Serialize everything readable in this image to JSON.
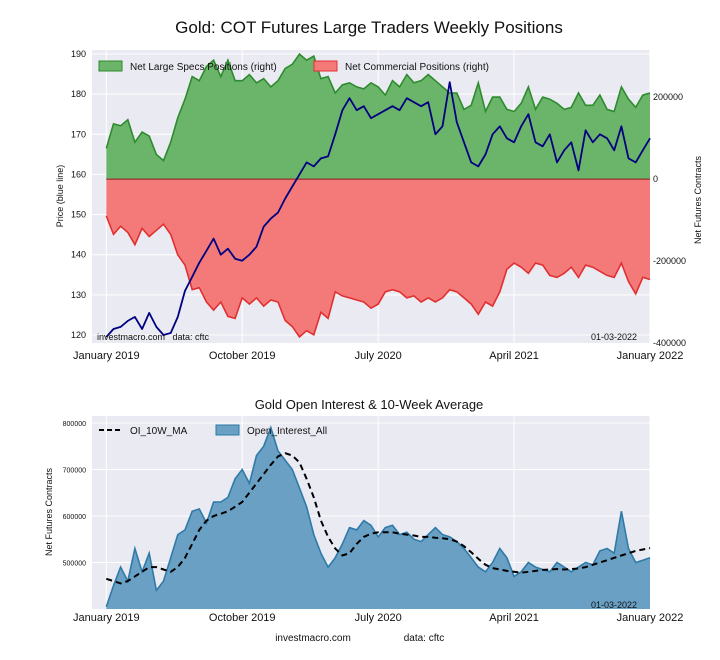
{
  "figure": {
    "title": "Gold: COT Futures Large Traders Weekly Positions"
  },
  "footer": {
    "site": "investmacro.com",
    "source": "data: cftc"
  },
  "colors": {
    "price": "#000080",
    "specs_fill": "#6bb56b",
    "specs_line": "#2e8b2e",
    "comm_fill": "#f47a7a",
    "comm_line": "#e03030",
    "oi_fill": "#6aa0c4",
    "oi_line": "#2f7aa8",
    "ma": "#000000",
    "plot_bg": "#eaeaf2"
  },
  "chart_data": [
    {
      "type": "area",
      "title": "Gold: COT Futures Large Traders Weekly Positions",
      "ylabel": "Price (blue line)",
      "y2label": "Net Futures Contracts",
      "ylim": [
        118,
        191
      ],
      "y2lim": [
        -400000,
        315000
      ],
      "yticks": [
        120,
        130,
        140,
        150,
        160,
        170,
        180,
        190
      ],
      "y2ticks": [
        -400000,
        -200000,
        0,
        200000
      ],
      "x_tick_labels": [
        "January 2019",
        "October 2019",
        "July 2020",
        "April 2021",
        "January 2022"
      ],
      "x_tick_positions": [
        0,
        38,
        76,
        114,
        152
      ],
      "x_range": [
        -4,
        152
      ],
      "watermark_left": "investmacro.com   data: cftc",
      "date_label": "01-03-2022",
      "legend": "upper-left",
      "series": [
        {
          "name": "Net Large Specs Positions (right)",
          "axis": "right",
          "x": [
            0,
            2,
            4,
            6,
            8,
            10,
            12,
            14,
            16,
            18,
            20,
            22,
            24,
            26,
            28,
            30,
            32,
            34,
            36,
            38,
            40,
            42,
            44,
            46,
            48,
            50,
            52,
            54,
            56,
            58,
            60,
            62,
            64,
            66,
            68,
            70,
            72,
            74,
            76,
            78,
            80,
            82,
            84,
            86,
            88,
            90,
            92,
            94,
            96,
            98,
            100,
            102,
            104,
            106,
            108,
            110,
            112,
            114,
            116,
            118,
            120,
            122,
            124,
            126,
            128,
            130,
            132,
            134,
            136,
            138,
            140,
            142,
            144,
            146,
            148,
            150,
            152
          ],
          "values": [
            75000,
            135000,
            130000,
            145000,
            90000,
            115000,
            105000,
            60000,
            45000,
            90000,
            150000,
            195000,
            250000,
            240000,
            275000,
            290000,
            250000,
            290000,
            240000,
            240000,
            255000,
            235000,
            245000,
            225000,
            240000,
            270000,
            280000,
            305000,
            290000,
            300000,
            245000,
            250000,
            210000,
            230000,
            235000,
            225000,
            220000,
            235000,
            225000,
            205000,
            240000,
            225000,
            255000,
            235000,
            240000,
            255000,
            240000,
            225000,
            210000,
            210000,
            170000,
            180000,
            235000,
            165000,
            200000,
            200000,
            170000,
            165000,
            185000,
            225000,
            170000,
            200000,
            195000,
            185000,
            170000,
            175000,
            210000,
            180000,
            180000,
            205000,
            170000,
            165000,
            225000,
            195000,
            175000,
            205000,
            210000
          ]
        },
        {
          "name": "Net Commercial Positions (right)",
          "axis": "right",
          "x": [
            0,
            2,
            4,
            6,
            8,
            10,
            12,
            14,
            16,
            18,
            20,
            22,
            24,
            26,
            28,
            30,
            32,
            34,
            36,
            38,
            40,
            42,
            44,
            46,
            48,
            50,
            52,
            54,
            56,
            58,
            60,
            62,
            64,
            66,
            68,
            70,
            72,
            74,
            76,
            78,
            80,
            82,
            84,
            86,
            88,
            90,
            92,
            94,
            96,
            98,
            100,
            102,
            104,
            106,
            108,
            110,
            112,
            114,
            116,
            118,
            120,
            122,
            124,
            126,
            128,
            130,
            132,
            134,
            136,
            138,
            140,
            142,
            144,
            146,
            148,
            150,
            152
          ],
          "values": [
            -90000,
            -135000,
            -115000,
            -130000,
            -160000,
            -120000,
            -140000,
            -125000,
            -110000,
            -135000,
            -185000,
            -210000,
            -270000,
            -265000,
            -300000,
            -320000,
            -300000,
            -335000,
            -340000,
            -290000,
            -305000,
            -290000,
            -310000,
            -295000,
            -300000,
            -345000,
            -360000,
            -385000,
            -370000,
            -380000,
            -325000,
            -340000,
            -275000,
            -285000,
            -290000,
            -295000,
            -300000,
            -315000,
            -305000,
            -275000,
            -270000,
            -275000,
            -290000,
            -285000,
            -300000,
            -290000,
            -300000,
            -290000,
            -270000,
            -275000,
            -290000,
            -305000,
            -330000,
            -300000,
            -310000,
            -275000,
            -220000,
            -205000,
            -215000,
            -230000,
            -205000,
            -210000,
            -235000,
            -240000,
            -230000,
            -215000,
            -240000,
            -210000,
            -215000,
            -225000,
            -235000,
            -240000,
            -205000,
            -250000,
            -280000,
            -240000,
            -245000
          ]
        },
        {
          "name": "Price",
          "axis": "left",
          "x": [
            0,
            2,
            4,
            6,
            8,
            10,
            12,
            14,
            16,
            18,
            20,
            22,
            24,
            26,
            28,
            30,
            32,
            34,
            36,
            38,
            40,
            42,
            44,
            46,
            48,
            50,
            52,
            54,
            56,
            58,
            60,
            62,
            64,
            66,
            68,
            70,
            72,
            74,
            76,
            78,
            80,
            82,
            84,
            86,
            88,
            90,
            92,
            94,
            96,
            98,
            100,
            102,
            104,
            106,
            108,
            110,
            112,
            114,
            116,
            118,
            120,
            122,
            124,
            126,
            128,
            130,
            132,
            134,
            136,
            138,
            140,
            142,
            144,
            146,
            148,
            150,
            152
          ],
          "values": [
            119.5,
            121.5,
            122,
            123.5,
            124.5,
            121.5,
            125.5,
            122,
            120,
            120.5,
            124.5,
            131,
            134.5,
            138,
            141,
            144,
            140,
            141.5,
            139,
            138.5,
            140,
            142,
            147,
            149,
            150.5,
            154,
            157,
            160,
            163,
            162,
            164,
            164.5,
            170,
            176,
            179,
            176,
            177,
            174,
            175,
            176,
            177,
            176,
            179,
            178,
            177,
            178,
            170,
            172,
            183,
            173,
            168,
            163,
            162,
            165,
            170,
            172,
            169,
            168,
            172,
            175,
            168,
            167,
            170,
            163,
            166,
            168,
            161,
            171,
            168,
            170,
            169,
            166,
            172,
            164,
            163,
            166,
            169
          ]
        }
      ]
    },
    {
      "type": "area",
      "title": "Gold Open Interest & 10-Week Average",
      "ylabel": "Net Futures Contracts",
      "ylim": [
        400000,
        815000
      ],
      "yticks": [
        500000,
        600000,
        700000,
        800000
      ],
      "x_tick_labels": [
        "January 2019",
        "October 2019",
        "July 2020",
        "April 2021",
        "January 2022"
      ],
      "x_tick_positions": [
        0,
        38,
        76,
        114,
        152
      ],
      "x_range": [
        -4,
        152
      ],
      "date_label": "01-03-2022",
      "legend": "upper-left",
      "series": [
        {
          "name": "Open_Interest_All",
          "x": [
            0,
            2,
            4,
            6,
            8,
            10,
            12,
            14,
            16,
            18,
            20,
            22,
            24,
            26,
            28,
            30,
            32,
            34,
            36,
            38,
            40,
            42,
            44,
            46,
            48,
            50,
            52,
            54,
            56,
            58,
            60,
            62,
            64,
            66,
            68,
            70,
            72,
            74,
            76,
            78,
            80,
            82,
            84,
            86,
            88,
            90,
            92,
            94,
            96,
            98,
            100,
            102,
            104,
            106,
            108,
            110,
            112,
            114,
            116,
            118,
            120,
            122,
            124,
            126,
            128,
            130,
            132,
            134,
            136,
            138,
            140,
            142,
            144,
            146,
            148,
            150,
            152
          ],
          "values": [
            405000,
            450000,
            490000,
            460000,
            530000,
            480000,
            520000,
            440000,
            460000,
            510000,
            560000,
            570000,
            610000,
            615000,
            585000,
            630000,
            630000,
            640000,
            680000,
            700000,
            670000,
            730000,
            750000,
            790000,
            740000,
            720000,
            700000,
            660000,
            620000,
            560000,
            520000,
            490000,
            510000,
            540000,
            575000,
            570000,
            590000,
            580000,
            555000,
            575000,
            580000,
            560000,
            565000,
            550000,
            545000,
            560000,
            575000,
            560000,
            555000,
            545000,
            530000,
            510000,
            490000,
            480000,
            500000,
            530000,
            510000,
            470000,
            480000,
            500000,
            490000,
            485000,
            480000,
            500000,
            490000,
            480000,
            490000,
            500000,
            495000,
            525000,
            530000,
            520000,
            610000,
            530000,
            500000,
            505000,
            510000
          ]
        },
        {
          "name": "OI_10W_MA",
          "x": [
            0,
            2,
            4,
            6,
            8,
            10,
            12,
            14,
            16,
            18,
            20,
            22,
            24,
            26,
            28,
            30,
            32,
            34,
            36,
            38,
            40,
            42,
            44,
            46,
            48,
            50,
            52,
            54,
            56,
            58,
            60,
            62,
            64,
            66,
            68,
            70,
            72,
            74,
            76,
            78,
            80,
            82,
            84,
            86,
            88,
            90,
            92,
            94,
            96,
            98,
            100,
            102,
            104,
            106,
            108,
            110,
            112,
            114,
            116,
            118,
            120,
            122,
            124,
            126,
            128,
            130,
            132,
            134,
            136,
            138,
            140,
            142,
            144,
            146,
            148,
            150,
            152
          ],
          "values": [
            465000,
            460000,
            455000,
            460000,
            470000,
            480000,
            490000,
            490000,
            485000,
            480000,
            490000,
            510000,
            540000,
            570000,
            590000,
            600000,
            605000,
            610000,
            620000,
            630000,
            650000,
            670000,
            690000,
            710000,
            728000,
            735000,
            730000,
            715000,
            680000,
            640000,
            590000,
            555000,
            530000,
            515000,
            520000,
            540000,
            555000,
            562000,
            565000,
            565000,
            565000,
            562000,
            560000,
            558000,
            555000,
            555000,
            553000,
            552000,
            550000,
            545000,
            535000,
            522000,
            508000,
            495000,
            488000,
            485000,
            482000,
            480000,
            478000,
            480000,
            482000,
            484000,
            485000,
            486000,
            485000,
            486000,
            487000,
            490000,
            495000,
            500000,
            505000,
            510000,
            515000,
            520000,
            525000,
            528000,
            531000
          ]
        }
      ]
    }
  ]
}
